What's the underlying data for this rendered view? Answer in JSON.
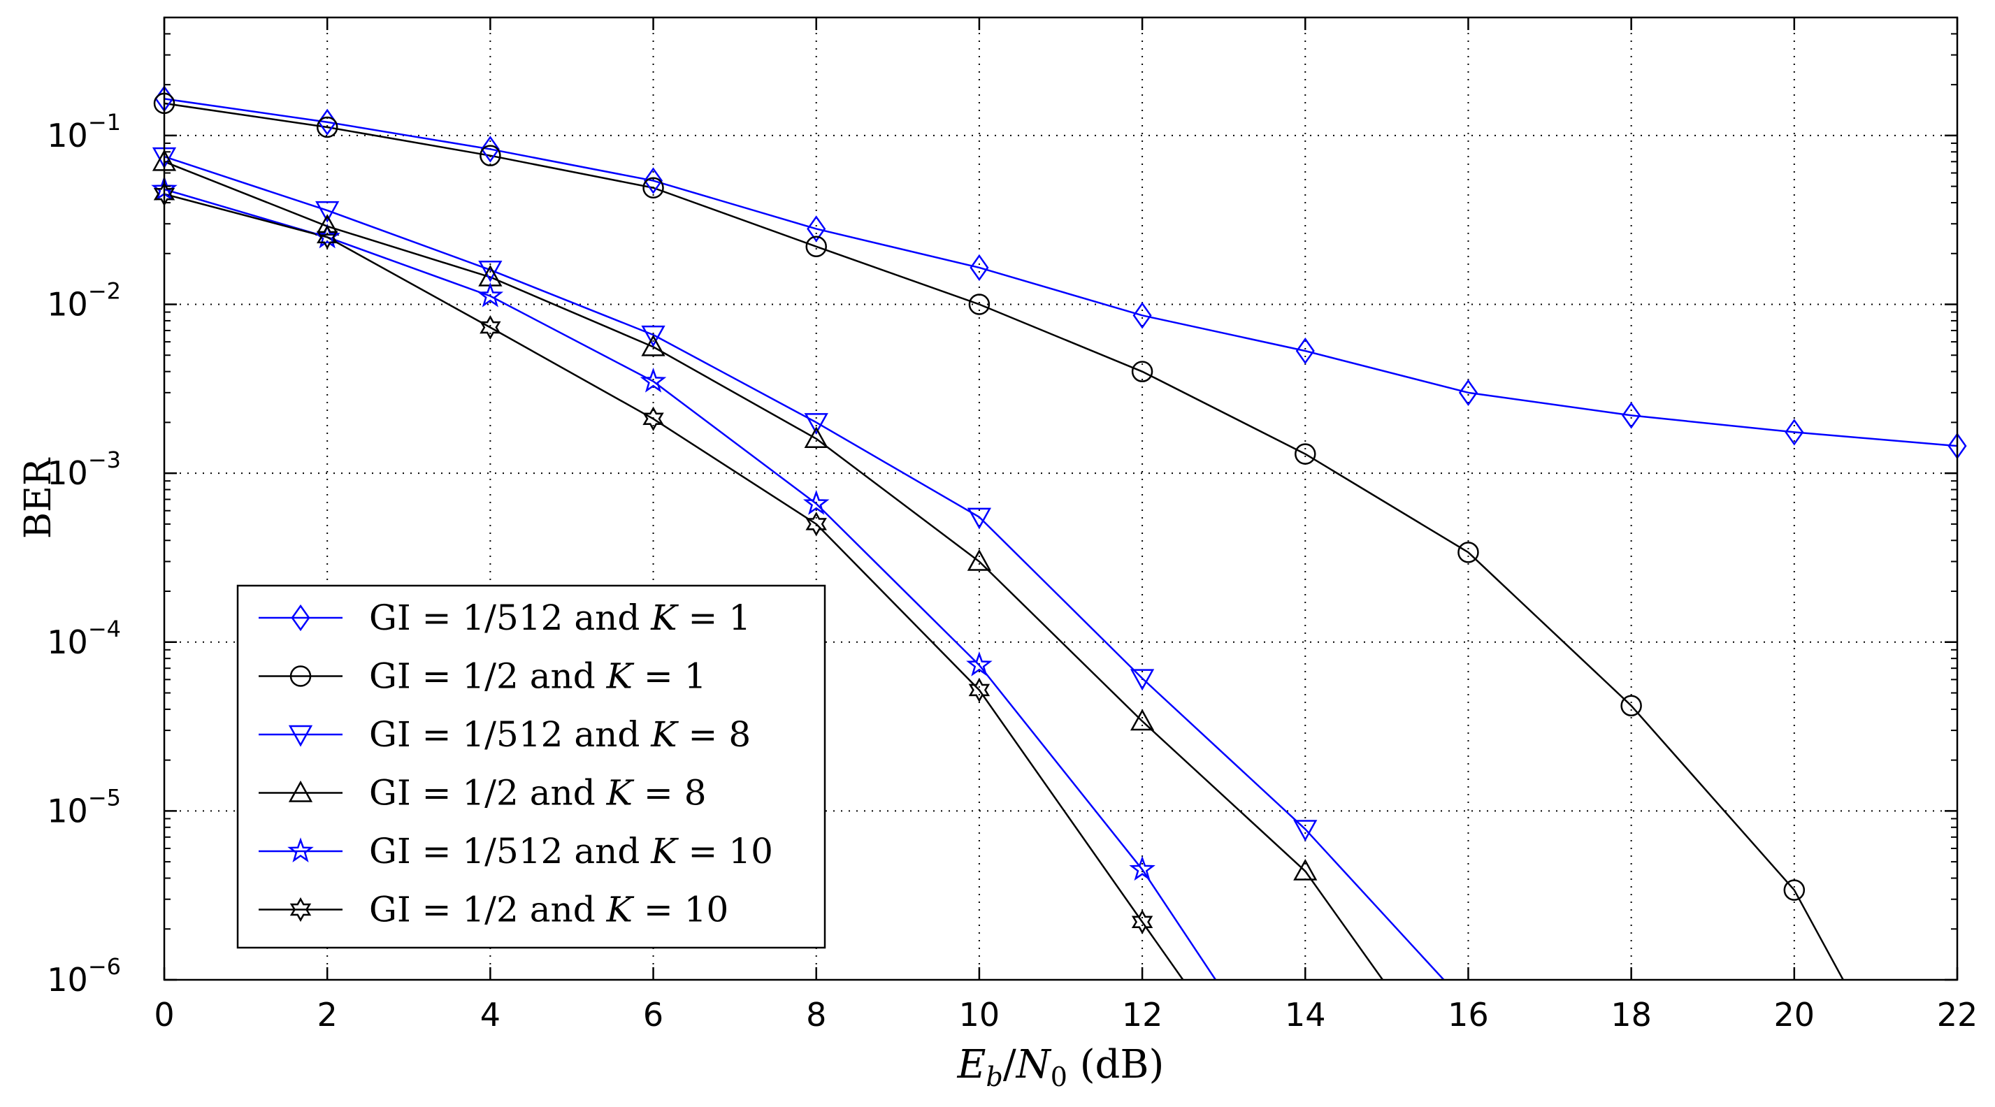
{
  "chart_data": {
    "type": "line",
    "title": "",
    "xlabel": "Eb/N0 (dB)",
    "ylabel": "BER",
    "xscale": "linear",
    "yscale": "log",
    "xlim": [
      0,
      22
    ],
    "ylim": [
      1e-06,
      0.5
    ],
    "grid": true,
    "legend_position": "bottom-left",
    "x_ticks": [
      0,
      2,
      4,
      6,
      8,
      10,
      12,
      14,
      16,
      18,
      20,
      22
    ],
    "y_ticks": [
      {
        "value": 1e-06,
        "base": "10",
        "exp": "−6"
      },
      {
        "value": 1e-05,
        "base": "10",
        "exp": "−5"
      },
      {
        "value": 0.0001,
        "base": "10",
        "exp": "−4"
      },
      {
        "value": 0.001,
        "base": "10",
        "exp": "−3"
      },
      {
        "value": 0.01,
        "base": "10",
        "exp": "−2"
      },
      {
        "value": 0.1,
        "base": "10",
        "exp": "−1"
      }
    ],
    "series": [
      {
        "name": "GI = 1/512 and K = 1",
        "color": "#0000ff",
        "marker": "diamond",
        "x": [
          0,
          2,
          4,
          6,
          8,
          10,
          12,
          14,
          16,
          18,
          20,
          22
        ],
        "values": [
          0.165,
          0.12,
          0.083,
          0.054,
          0.028,
          0.0165,
          0.0086,
          0.0053,
          0.003,
          0.0022,
          0.00175,
          0.00145
        ]
      },
      {
        "name": "GI = 1/2 and K = 1",
        "color": "#000000",
        "marker": "circle",
        "x": [
          0,
          2,
          4,
          6,
          8,
          10,
          12,
          14,
          16,
          18,
          20,
          20.6
        ],
        "values": [
          0.155,
          0.112,
          0.076,
          0.049,
          0.022,
          0.01,
          0.004,
          0.0013,
          0.00034,
          4.2e-05,
          3.4e-06,
          1e-06
        ]
      },
      {
        "name": "GI = 1/512 and K = 8",
        "color": "#0000ff",
        "marker": "triangle-down",
        "x": [
          0,
          2,
          4,
          6,
          8,
          10,
          12,
          14,
          15.7
        ],
        "values": [
          0.075,
          0.036,
          0.016,
          0.0066,
          0.002,
          0.00055,
          6.1e-05,
          7.8e-06,
          1e-06
        ]
      },
      {
        "name": "GI = 1/2 and K = 8",
        "color": "#000000",
        "marker": "triangle-up",
        "x": [
          0,
          2,
          4,
          6,
          8,
          10,
          12,
          14,
          14.95
        ],
        "values": [
          0.07,
          0.029,
          0.0145,
          0.0056,
          0.0016,
          0.0003,
          3.4e-05,
          4.4e-06,
          1e-06
        ]
      },
      {
        "name": "GI = 1/512 and K = 10",
        "color": "#0000ff",
        "marker": "pentagram",
        "x": [
          0,
          2,
          4,
          6,
          8,
          10,
          12,
          12.9
        ],
        "values": [
          0.048,
          0.025,
          0.0112,
          0.0035,
          0.00066,
          7.3e-05,
          4.5e-06,
          1e-06
        ]
      },
      {
        "name": "GI = 1/2 and K = 10",
        "color": "#000000",
        "marker": "hexagram",
        "x": [
          0,
          2,
          4,
          6,
          8,
          10,
          12,
          12.5
        ],
        "values": [
          0.045,
          0.025,
          0.0073,
          0.0021,
          0.0005,
          5.2e-05,
          2.2e-06,
          1e-06
        ]
      }
    ],
    "legend": [
      {
        "color": "#0000ff",
        "marker": "diamond",
        "prefix": "GI = 1/512 and ",
        "var": "K",
        "suffix": " = 1"
      },
      {
        "color": "#000000",
        "marker": "circle",
        "prefix": "GI = 1/2 and ",
        "var": "K",
        "suffix": " = 1"
      },
      {
        "color": "#0000ff",
        "marker": "triangle-down",
        "prefix": "GI = 1/512 and ",
        "var": "K",
        "suffix": " = 8"
      },
      {
        "color": "#000000",
        "marker": "triangle-up",
        "prefix": "GI = 1/2 and ",
        "var": "K",
        "suffix": " = 8"
      },
      {
        "color": "#0000ff",
        "marker": "pentagram",
        "prefix": "GI = 1/512 and ",
        "var": "K",
        "suffix": " = 10"
      },
      {
        "color": "#000000",
        "marker": "hexagram",
        "prefix": "GI = 1/2 and ",
        "var": "K",
        "suffix": " = 10"
      }
    ],
    "xlabel_parts": {
      "E": "E",
      "b": "b",
      "slash": "/",
      "N": "N",
      "zero": "0",
      "unit": " (dB)"
    }
  }
}
